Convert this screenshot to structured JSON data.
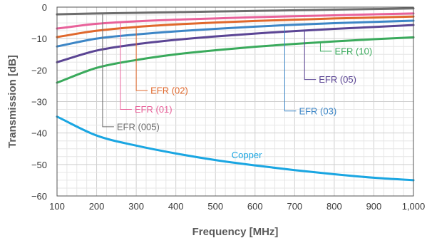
{
  "chart_data": {
    "type": "line",
    "xlabel": "Frequency [MHz]",
    "ylabel": "Transmission [dB]",
    "xlim": [
      100,
      1000
    ],
    "ylim": [
      -60,
      0
    ],
    "grid": true,
    "x_ticks": [
      {
        "value": 100,
        "label": "100"
      },
      {
        "value": 200,
        "label": "200"
      },
      {
        "value": 300,
        "label": "300"
      },
      {
        "value": 400,
        "label": "400"
      },
      {
        "value": 500,
        "label": "500"
      },
      {
        "value": 600,
        "label": "600"
      },
      {
        "value": 700,
        "label": "700"
      },
      {
        "value": 800,
        "label": "800"
      },
      {
        "value": 900,
        "label": "900"
      },
      {
        "value": 1000,
        "label": "1,000"
      }
    ],
    "y_ticks": [
      {
        "value": 0,
        "label": "0"
      },
      {
        "value": -10,
        "label": "−10"
      },
      {
        "value": -20,
        "label": "−20"
      },
      {
        "value": -30,
        "label": "−30"
      },
      {
        "value": -40,
        "label": "−40"
      },
      {
        "value": -50,
        "label": "−50"
      },
      {
        "value": -60,
        "label": "−60"
      }
    ],
    "x": [
      100,
      200,
      300,
      400,
      500,
      600,
      700,
      800,
      900,
      1000
    ],
    "series": [
      {
        "name": "EFR (005)",
        "color": "#6d6d6d",
        "values": [
          -2.3,
          -2.0,
          -1.8,
          -1.6,
          -1.4,
          -1.2,
          -1.0,
          -0.8,
          -0.6,
          -0.4
        ]
      },
      {
        "name": "EFR (01)",
        "color": "#e8619a",
        "values": [
          -6.8,
          -5.3,
          -4.5,
          -4.0,
          -3.6,
          -3.2,
          -2.9,
          -2.6,
          -2.3,
          -2.0
        ]
      },
      {
        "name": "EFR (02)",
        "color": "#e0682c",
        "values": [
          -9.5,
          -7.5,
          -6.3,
          -5.5,
          -4.9,
          -4.4,
          -4.0,
          -3.6,
          -3.3,
          -3.0
        ]
      },
      {
        "name": "EFR (03)",
        "color": "#3d86c6",
        "values": [
          -12.5,
          -10.0,
          -8.7,
          -7.7,
          -6.9,
          -6.2,
          -5.6,
          -5.1,
          -4.7,
          -4.3
        ]
      },
      {
        "name": "EFR (05)",
        "color": "#5b4594",
        "values": [
          -17.5,
          -13.8,
          -11.8,
          -10.4,
          -9.3,
          -8.4,
          -7.6,
          -6.9,
          -6.3,
          -5.7
        ]
      },
      {
        "name": "EFR (10)",
        "color": "#3aaa5c",
        "values": [
          -24.0,
          -19.3,
          -16.8,
          -15.0,
          -13.7,
          -12.6,
          -11.7,
          -10.9,
          -10.2,
          -9.6
        ]
      },
      {
        "name": "Copper",
        "color": "#1aa6e2",
        "values": [
          -34.8,
          -40.8,
          -44.0,
          -46.5,
          -48.6,
          -50.3,
          -51.8,
          -53.1,
          -54.2,
          -55.0
        ]
      }
    ],
    "annotations": [
      {
        "series": "EFR (02)",
        "label": "EFR (02)",
        "anchor_x": 300,
        "label_y": -26.5
      },
      {
        "series": "EFR (01)",
        "label": "EFR (01)",
        "anchor_x": 260,
        "label_y": -32.5
      },
      {
        "series": "EFR (005)",
        "label": "EFR (005)",
        "anchor_x": 215,
        "label_y": -38.0
      },
      {
        "series": "EFR (03)",
        "label": "EFR (03)",
        "anchor_x": 675,
        "label_y": -33.0
      },
      {
        "series": "EFR (05)",
        "label": "EFR (05)",
        "anchor_x": 725,
        "label_y": -23.0
      },
      {
        "series": "EFR (10)",
        "label": "EFR (10)",
        "anchor_x": 765,
        "label_y": -14.0
      },
      {
        "series": "Copper",
        "label": "Copper",
        "anchor_x": 555,
        "label_y": -47.0
      }
    ]
  }
}
